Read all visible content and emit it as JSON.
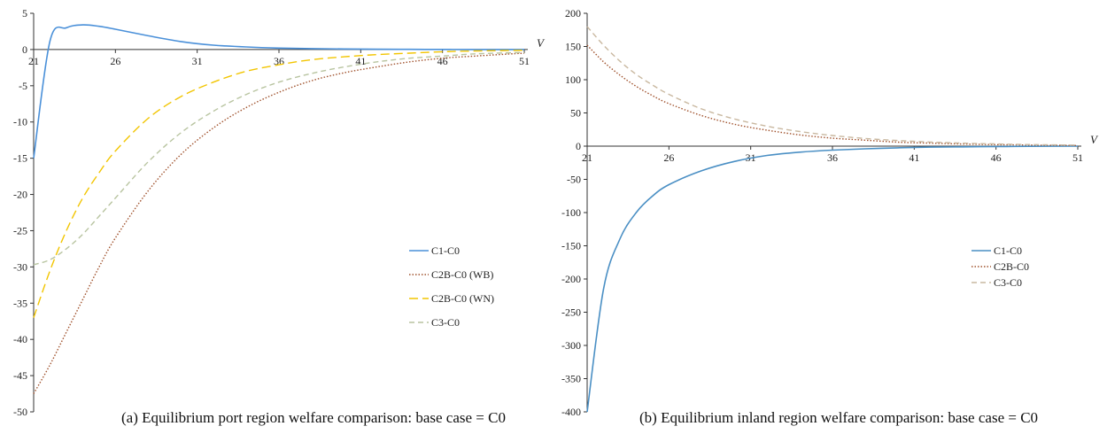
{
  "captions": {
    "a": "(a) Equilibrium port region welfare comparison: base case = C0",
    "b": "(b) Equilibrium inland region welfare comparison: base case = C0"
  },
  "chart_data": [
    {
      "type": "line",
      "title": "",
      "xlabel": "V",
      "ylabel": "",
      "xlim": [
        21,
        51
      ],
      "ylim": [
        -50,
        5
      ],
      "xticks": [
        "21",
        "26",
        "31",
        "36",
        "41",
        "46",
        "51"
      ],
      "yticks": [
        "5",
        "0",
        "-5",
        "-10",
        "-15",
        "-20",
        "-25",
        "-30",
        "-35",
        "-40",
        "-45",
        "-50"
      ],
      "grid": false,
      "legend_position": "right",
      "x": [
        21,
        22,
        23,
        24,
        25,
        26,
        28,
        30,
        32,
        34,
        36,
        38,
        40,
        42,
        44,
        46,
        48,
        51
      ],
      "series": [
        {
          "name": "C1-C0",
          "color": "#4a90d9",
          "style": "solid",
          "values": [
            -15,
            1.2,
            3.0,
            3.4,
            3.2,
            2.8,
            1.9,
            1.1,
            0.6,
            0.35,
            0.2,
            0.12,
            0.07,
            0.04,
            0.02,
            0.01,
            0.0,
            0.0
          ]
        },
        {
          "name": "C2B-C0 (WB)",
          "color": "#a0522d",
          "style": "dotted",
          "values": [
            -47.5,
            -43.5,
            -39.0,
            -34.5,
            -30.0,
            -26.0,
            -19.5,
            -14.5,
            -10.8,
            -8.0,
            -5.9,
            -4.3,
            -3.2,
            -2.4,
            -1.7,
            -1.2,
            -0.9,
            -0.5
          ]
        },
        {
          "name": "C2B-C0 (WN)",
          "color": "#f2c500",
          "style": "long-dash",
          "values": [
            -37.0,
            -30.5,
            -25.0,
            -20.5,
            -17.0,
            -14.0,
            -9.5,
            -6.5,
            -4.5,
            -3.0,
            -2.1,
            -1.4,
            -1.0,
            -0.7,
            -0.5,
            -0.3,
            -0.2,
            -0.1
          ]
        },
        {
          "name": "C3-C0",
          "color": "#b8c4a0",
          "style": "dashed",
          "values": [
            -29.7,
            -29.0,
            -27.5,
            -25.5,
            -23.0,
            -20.5,
            -15.5,
            -11.5,
            -8.5,
            -6.2,
            -4.5,
            -3.3,
            -2.4,
            -1.7,
            -1.2,
            -0.9,
            -0.6,
            -0.4
          ]
        }
      ]
    },
    {
      "type": "line",
      "title": "",
      "xlabel": "V",
      "ylabel": "",
      "xlim": [
        21,
        51
      ],
      "ylim": [
        -400,
        200
      ],
      "xticks": [
        "21",
        "26",
        "31",
        "36",
        "41",
        "46",
        "51"
      ],
      "yticks": [
        "200",
        "150",
        "100",
        "50",
        "0",
        "-50",
        "-100",
        "-150",
        "-200",
        "-250",
        "-300",
        "-350",
        "-400"
      ],
      "grid": false,
      "legend_position": "right",
      "x": [
        21,
        22,
        23,
        24,
        25,
        26,
        28,
        30,
        32,
        34,
        36,
        38,
        40,
        42,
        44,
        46,
        48,
        51
      ],
      "series": [
        {
          "name": "C1-C0",
          "color": "#4a8fc4",
          "style": "solid",
          "values": [
            -400,
            -215,
            -140,
            -100,
            -75,
            -58,
            -37,
            -23,
            -14,
            -9,
            -6,
            -4,
            -2.5,
            -1.5,
            -1,
            -0.6,
            -0.3,
            0
          ]
        },
        {
          "name": "C2B-C0",
          "color": "#a0522d",
          "style": "dotted",
          "values": [
            152,
            127,
            107,
            90,
            76,
            64,
            46,
            33,
            24,
            17,
            12,
            9,
            6,
            4.5,
            3.2,
            2.3,
            1.6,
            1.0
          ]
        },
        {
          "name": "C3-C0",
          "color": "#c9b8a0",
          "style": "dashed",
          "values": [
            180,
            152,
            128,
            108,
            92,
            78,
            56,
            41,
            30,
            22,
            16,
            11.5,
            8.5,
            6.2,
            4.5,
            3.3,
            2.4,
            1.5
          ]
        }
      ]
    }
  ]
}
